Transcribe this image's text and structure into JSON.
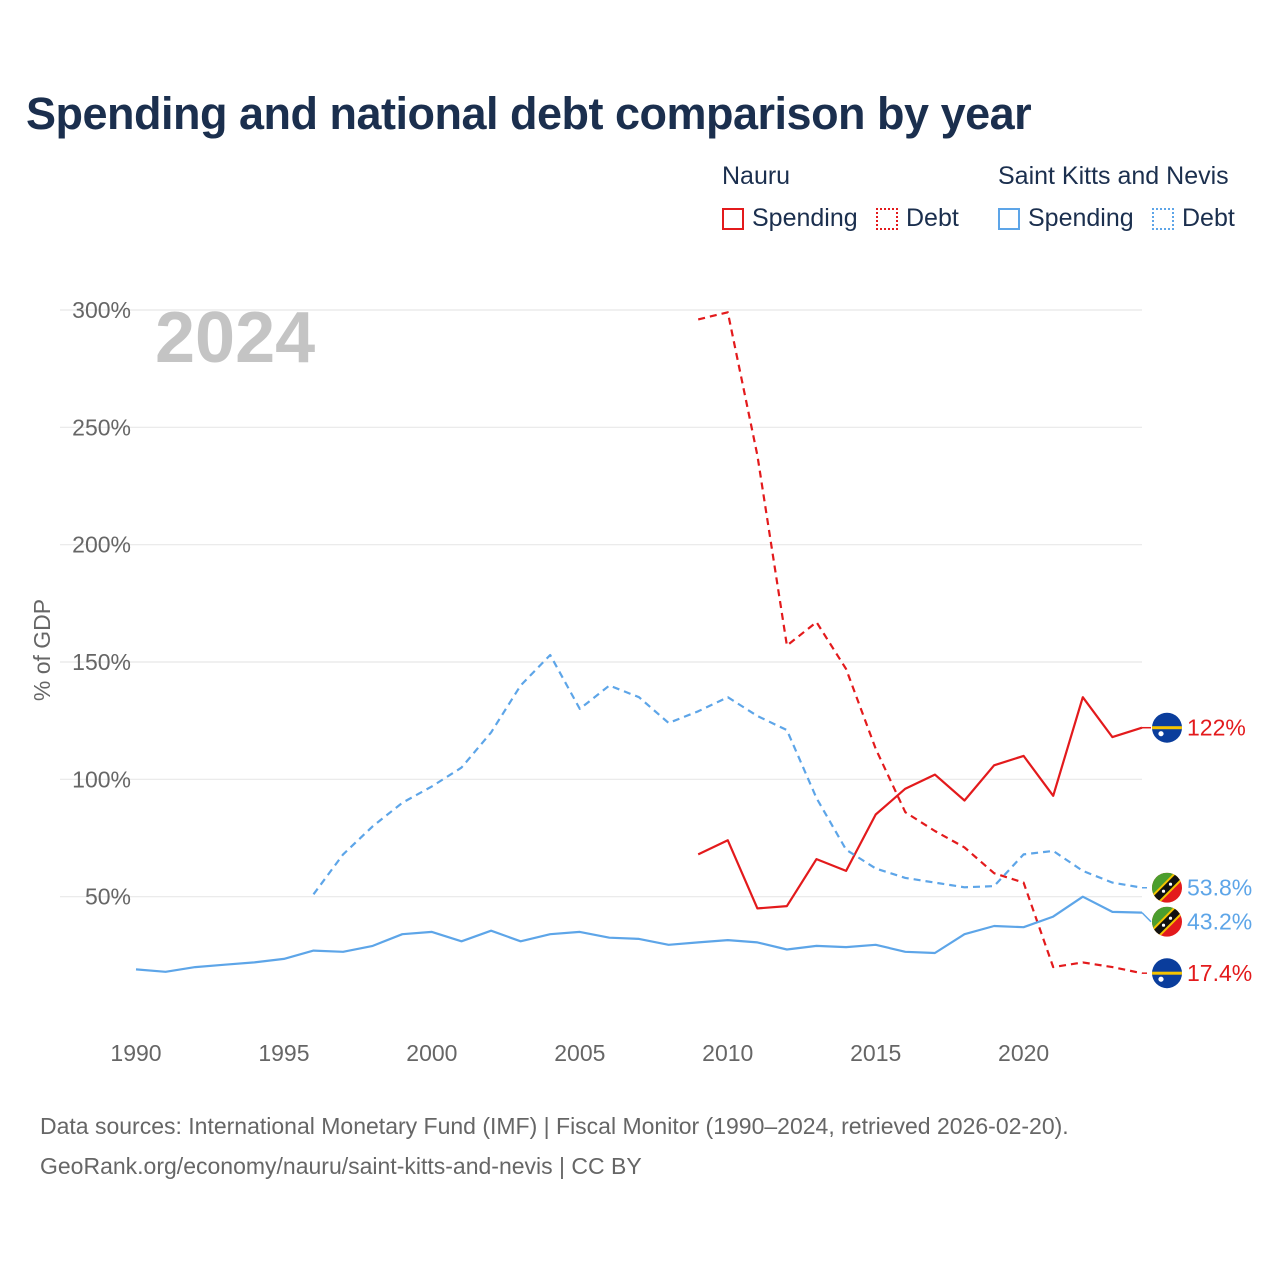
{
  "title": "Spending and national debt comparison by year",
  "legend": {
    "groups": [
      {
        "name": "Nauru",
        "color": "#e31a1c",
        "items": [
          {
            "label": "Spending",
            "style": "solid"
          },
          {
            "label": "Debt",
            "style": "dotted"
          }
        ]
      },
      {
        "name": "Saint Kitts and Nevis",
        "color": "#5da5e8",
        "items": [
          {
            "label": "Spending",
            "style": "solid"
          },
          {
            "label": "Debt",
            "style": "dotted"
          }
        ]
      }
    ]
  },
  "source": {
    "line1": "Data sources: International Monetary Fund (IMF) | Fiscal Monitor (1990–2024, retrieved 2026-02-20).",
    "line2": "GeoRank.org/economy/nauru/saint-kitts-and-nevis | CC BY"
  },
  "chart_data": {
    "type": "line",
    "year_label": "2024",
    "ylabel": "% of GDP",
    "xlim": [
      1990,
      2024
    ],
    "ylim": [
      0,
      300
    ],
    "x_ticks": [
      1990,
      1995,
      2000,
      2005,
      2010,
      2015,
      2020
    ],
    "x_tick_labels": [
      "1990",
      "1995",
      "2000",
      "2005",
      "2010",
      "2015",
      "2020"
    ],
    "y_ticks": [
      50,
      100,
      150,
      200,
      250,
      300
    ],
    "y_tick_labels": [
      "50%",
      "100%",
      "150%",
      "200%",
      "250%",
      "300%"
    ],
    "series": [
      {
        "name": "Nauru Spending",
        "country": "Nauru",
        "color": "#e31a1c",
        "dash": "solid",
        "x": [
          2009,
          2010,
          2011,
          2012,
          2013,
          2014,
          2015,
          2016,
          2017,
          2018,
          2019,
          2020,
          2021,
          2022,
          2023,
          2024
        ],
        "values": [
          68,
          74,
          45,
          46,
          66,
          61,
          85,
          96,
          102,
          91,
          106,
          110,
          93,
          135,
          118,
          122
        ],
        "end_label": "122%",
        "flag": "nauru"
      },
      {
        "name": "Nauru Debt",
        "country": "Nauru",
        "color": "#e31a1c",
        "dash": "dashed",
        "x": [
          2009,
          2010,
          2011,
          2012,
          2013,
          2014,
          2015,
          2016,
          2017,
          2018,
          2019,
          2020,
          2021,
          2022,
          2023,
          2024
        ],
        "values": [
          296,
          299,
          238,
          157,
          167,
          147,
          113,
          86,
          78,
          71,
          60,
          56,
          20,
          22,
          20,
          17.4
        ],
        "end_label": "17.4%",
        "flag": "nauru"
      },
      {
        "name": "Saint Kitts and Nevis Spending",
        "country": "Saint Kitts and Nevis",
        "color": "#5da5e8",
        "dash": "solid",
        "x": [
          1990,
          1991,
          1992,
          1993,
          1994,
          1995,
          1996,
          1997,
          1998,
          1999,
          2000,
          2001,
          2002,
          2003,
          2004,
          2005,
          2006,
          2007,
          2008,
          2009,
          2010,
          2011,
          2012,
          2013,
          2014,
          2015,
          2016,
          2017,
          2018,
          2019,
          2020,
          2021,
          2022,
          2023,
          2024
        ],
        "values": [
          19,
          18,
          20,
          21,
          22,
          23.5,
          27,
          26.5,
          29,
          34,
          35,
          31,
          35.5,
          31,
          34,
          35,
          32.5,
          32,
          29.5,
          30.5,
          31.5,
          30.5,
          27.5,
          29,
          28.5,
          29.5,
          26.5,
          26,
          34,
          37.5,
          37,
          41.5,
          50,
          43.5,
          43.2
        ],
        "end_label": "43.2%",
        "flag": "kitts"
      },
      {
        "name": "Saint Kitts and Nevis Debt",
        "country": "Saint Kitts and Nevis",
        "color": "#5da5e8",
        "dash": "dashed",
        "x": [
          1996,
          1997,
          1998,
          1999,
          2000,
          2001,
          2002,
          2003,
          2004,
          2005,
          2006,
          2007,
          2008,
          2009,
          2010,
          2011,
          2012,
          2013,
          2014,
          2015,
          2016,
          2017,
          2018,
          2019,
          2020,
          2021,
          2022,
          2023,
          2024
        ],
        "values": [
          51,
          68,
          80,
          90,
          97,
          105,
          120,
          140,
          153,
          130,
          140,
          135,
          124,
          129,
          135,
          127,
          121,
          92,
          70,
          62,
          58,
          56,
          54,
          54.5,
          68,
          69.5,
          61,
          56,
          53.8
        ],
        "end_label": "53.8%",
        "flag": "kitts"
      }
    ]
  }
}
